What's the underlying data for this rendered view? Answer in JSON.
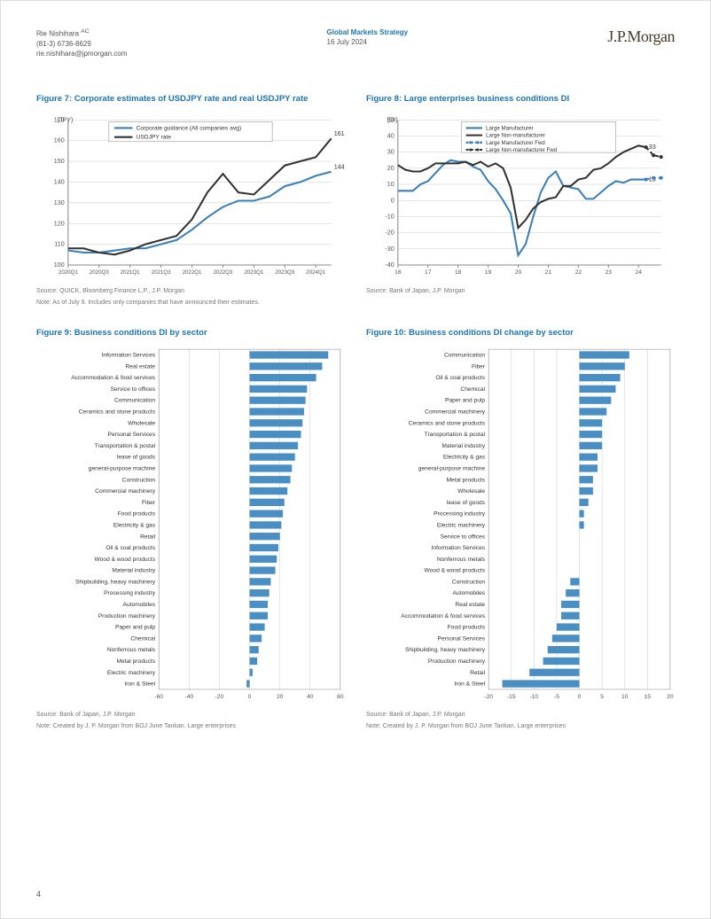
{
  "header": {
    "author": "Rie Nishihara",
    "ac": "AC",
    "phone": "(81-3) 6736-8629",
    "email": "rie.nishihara@jpmorgan.com",
    "group": "Global Markets Strategy",
    "date": "16 July 2024",
    "logo": "J.P.Morgan"
  },
  "page_number": "4",
  "figure7": {
    "title": "Figure 7: Corporate estimates of USDJPY rate and real USDJPY rate",
    "type": "line",
    "ylabel": "(JPY)",
    "ylim": [
      100,
      170
    ],
    "ytick_step": 10,
    "xcategories": [
      "2020Q1",
      "2020Q3",
      "2021Q1",
      "2021Q3",
      "2022Q1",
      "2022Q3",
      "2023Q1",
      "2023Q3",
      "2024Q1"
    ],
    "legend": [
      "Corporate guidance (All companies avg)",
      "USDJPY rate"
    ],
    "series": {
      "corporate_guidance": {
        "color": "#3a7fb8",
        "width": 2,
        "label_end": "144.8",
        "x": [
          0,
          1,
          2,
          3,
          4,
          5,
          6,
          7,
          8,
          9,
          10,
          11,
          12,
          13,
          14,
          15,
          16,
          17
        ],
        "y": [
          107,
          106,
          106,
          107,
          108,
          108,
          110,
          112,
          117,
          123,
          128,
          131,
          131,
          133,
          138,
          140,
          143,
          145
        ]
      },
      "usdjpy_rate": {
        "color": "#333333",
        "width": 2,
        "label_end": "161.3",
        "x": [
          0,
          1,
          2,
          3,
          4,
          5,
          6,
          7,
          8,
          9,
          10,
          11,
          12,
          13,
          14,
          15,
          16,
          17
        ],
        "y": [
          108,
          108,
          106,
          105,
          107,
          110,
          112,
          114,
          122,
          135,
          144,
          135,
          134,
          141,
          148,
          150,
          152,
          161
        ]
      }
    },
    "xlim_ticks": 18,
    "background_color": "#ffffff",
    "grid_color": "#cccccc",
    "source": "Source: QUICK, Bloomberg Finance L.P., J.P. Morgan",
    "note": "Note: As of July 9. Includes only companies that have announced their estimates."
  },
  "figure8": {
    "title": "Figure 8: Large enterprises business conditions DI",
    "type": "line",
    "ylabel": "(DI)",
    "ylim": [
      -40,
      50
    ],
    "ytick_step": 10,
    "xcategories": [
      "16",
      "17",
      "18",
      "19",
      "20",
      "21",
      "22",
      "23",
      "24"
    ],
    "legend": [
      "Large Manufacturer",
      "Large Non-manufacturer",
      "Large Manufacturer Fwd",
      "Large Non-manufacturer Fwd"
    ],
    "legend_styles": [
      "solid-blue",
      "solid-black",
      "dotted-blue",
      "dotted-black"
    ],
    "series": {
      "large_mfr": {
        "color": "#3a7fb8",
        "width": 2,
        "dash": "none",
        "x": [
          0,
          1,
          2,
          3,
          4,
          5,
          6,
          7,
          8,
          9,
          10,
          11,
          12,
          13,
          14,
          15,
          16,
          17,
          18,
          19,
          20,
          21,
          22,
          23,
          24,
          25,
          26,
          27,
          28,
          29,
          30,
          31,
          32,
          33
        ],
        "y": [
          6,
          6,
          6,
          10,
          12,
          17,
          22,
          25,
          24,
          24,
          21,
          19,
          12,
          7,
          0,
          -8,
          -34,
          -27,
          -10,
          5,
          14,
          18,
          9,
          8,
          7,
          1,
          1,
          5,
          9,
          12,
          11,
          13,
          13,
          13
        ],
        "label_end": "13"
      },
      "large_nonmfr": {
        "color": "#333333",
        "width": 2,
        "dash": "none",
        "x": [
          0,
          1,
          2,
          3,
          4,
          5,
          6,
          7,
          8,
          9,
          10,
          11,
          12,
          13,
          14,
          15,
          16,
          17,
          18,
          19,
          20,
          21,
          22,
          23,
          24,
          25,
          26,
          27,
          28,
          29,
          30,
          31,
          32,
          33
        ],
        "y": [
          22,
          19,
          18,
          18,
          20,
          23,
          23,
          23,
          23,
          24,
          22,
          24,
          21,
          23,
          20,
          8,
          -17,
          -12,
          -5,
          -1,
          1,
          2,
          9,
          9,
          13,
          14,
          19,
          20,
          23,
          27,
          30,
          32,
          34,
          33
        ],
        "label_end": "33"
      },
      "large_mfr_fwd": {
        "color": "#3a7fb8",
        "width": 2,
        "dash": "4,3",
        "x": [
          33,
          34,
          35
        ],
        "y": [
          13,
          14,
          14
        ]
      },
      "large_nonmfr_fwd": {
        "color": "#333333",
        "width": 2,
        "dash": "4,3",
        "x": [
          33,
          34,
          35
        ],
        "y": [
          33,
          28,
          27
        ]
      }
    },
    "xlim_ticks": 36,
    "background_color": "#ffffff",
    "grid_color": "#cccccc",
    "source": "Source: Bank of Japan, J.P. Morgan"
  },
  "figure9": {
    "title": "Figure 9: Business conditions DI by sector",
    "type": "hbar",
    "xlim": [
      -60,
      60
    ],
    "xtick_step": 20,
    "bar_color": "#4a8fc4",
    "grid_color": "#cccccc",
    "categories": [
      "Information Services",
      "Real estate",
      "Accommodation & food services",
      "Service to offices",
      "Communication",
      "Ceramics and stone products",
      "Wholesale",
      "Personal Services",
      "Transportation & postal",
      "lease of goods",
      "general-purpose machine",
      "Construction",
      "Commercial machinery",
      "Fiber",
      "Food products",
      "Electricity & gas",
      "Retail",
      "Oil & coal products",
      "Wood & wood products",
      "Material industry",
      "Shipbuilding, heavy machinery",
      "Processing industry",
      "Automobiles",
      "Production machinery",
      "Paper and pulp",
      "Chemical",
      "Nonferrous metals",
      "Metal products",
      "Electric machinery",
      "Iron & Steel"
    ],
    "values": [
      52,
      48,
      44,
      38,
      37,
      36,
      35,
      34,
      32,
      30,
      28,
      27,
      25,
      23,
      22,
      21,
      20,
      19,
      18,
      17,
      14,
      13,
      12,
      12,
      10,
      8,
      6,
      5,
      2,
      -2
    ],
    "source": "Source: Bank of Japan, J.P. Morgan",
    "note": "Note: Created by J. P. Morgan from BOJ June Tankan. Large enterprises"
  },
  "figure10": {
    "title": "Figure 10: Business conditions DI change by sector",
    "type": "hbar",
    "xlim": [
      -20,
      20
    ],
    "xtick_step": 5,
    "bar_color": "#4a8fc4",
    "grid_color": "#cccccc",
    "categories": [
      "Communication",
      "Fiber",
      "Oil & coal products",
      "Chemical",
      "Paper and pulp",
      "Commercial machinery",
      "Ceramics and stone products",
      "Transportation & postal",
      "Material industry",
      "Electricity & gas",
      "general-purpose machine",
      "Metal products",
      "Wholesale",
      "lease of goods",
      "Processing industry",
      "Electric machinery",
      "Service to offices",
      "Information Services",
      "Nonferrous metals",
      "Wood & wood products",
      "Construction",
      "Automobiles",
      "Real estate",
      "Accommodation & food services",
      "Food products",
      "Personal Services",
      "Shipbuilding, heavy machinery",
      "Production machinery",
      "Retail",
      "Iron & Steel"
    ],
    "values": [
      11,
      10,
      9,
      8,
      7,
      6,
      5,
      5,
      5,
      4,
      4,
      3,
      3,
      2,
      1,
      1,
      0,
      0,
      0,
      0,
      -2,
      -3,
      -4,
      -4,
      -5,
      -6,
      -7,
      -8,
      -11,
      -17
    ],
    "source": "Source: Bank of Japan, J.P. Morgan",
    "note": "Note: Created by J. P. Morgan from BOJ June Tankan. Large enterprises"
  }
}
